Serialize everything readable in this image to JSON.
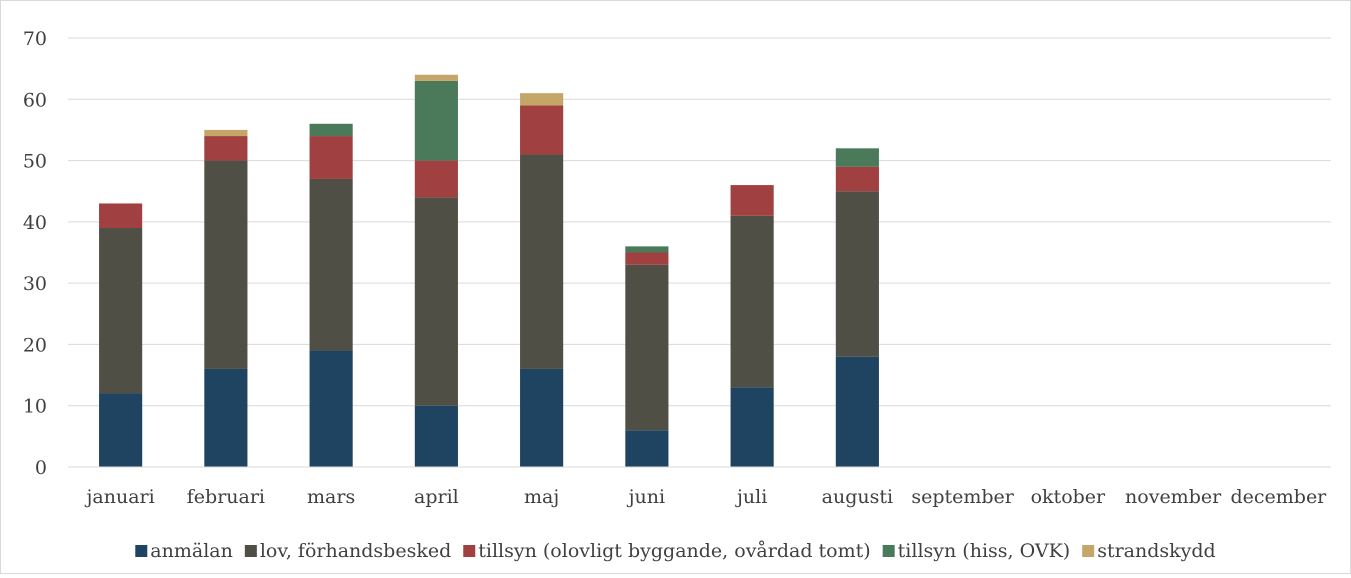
{
  "chart_data": {
    "type": "bar",
    "stacked": true,
    "title": "",
    "xlabel": "",
    "ylabel": "",
    "ylim": [
      0,
      70
    ],
    "yticks": [
      0,
      10,
      20,
      30,
      40,
      50,
      60,
      70
    ],
    "grid": true,
    "legend_position": "bottom",
    "categories": [
      "januari",
      "februari",
      "mars",
      "april",
      "maj",
      "juni",
      "juli",
      "augusti",
      "september",
      "oktober",
      "november",
      "december"
    ],
    "series": [
      {
        "name": "anmälan",
        "color": "#1f4462",
        "values": [
          12,
          16,
          19,
          10,
          16,
          6,
          13,
          18,
          null,
          null,
          null,
          null
        ]
      },
      {
        "name": "lov, förhandsbesked",
        "color": "#4f4f45",
        "values": [
          27,
          34,
          28,
          34,
          35,
          27,
          28,
          27,
          null,
          null,
          null,
          null
        ]
      },
      {
        "name": "tillsyn (olovligt byggande, ovårdad tomt)",
        "color": "#a04040",
        "values": [
          4,
          4,
          7,
          6,
          8,
          2,
          5,
          4,
          null,
          null,
          null,
          null
        ]
      },
      {
        "name": "tillsyn (hiss, OVK)",
        "color": "#4a7a5a",
        "values": [
          0,
          0,
          2,
          13,
          0,
          1,
          0,
          3,
          null,
          null,
          null,
          null
        ]
      },
      {
        "name": "strandskydd",
        "color": "#c4a668",
        "values": [
          0,
          1,
          0,
          1,
          2,
          0,
          0,
          0,
          null,
          null,
          null,
          null
        ]
      }
    ]
  }
}
